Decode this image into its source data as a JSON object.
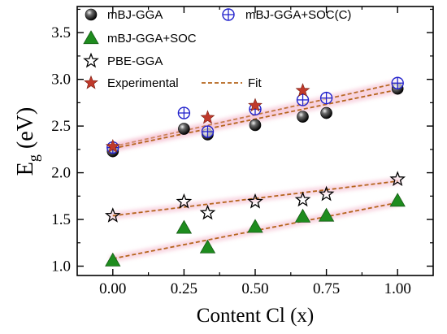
{
  "chart_data": {
    "type": "scatter",
    "xlabel": "Content Cl (x)",
    "ylabel_main": "E",
    "ylabel_sub": "g",
    "ylabel_unit": " (eV)",
    "xlim": [
      -0.125,
      1.125
    ],
    "ylim": [
      0.9,
      3.78
    ],
    "x_ticks": [
      "0.00",
      "0.25",
      "0.50",
      "0.75",
      "1.00"
    ],
    "x_tick_values": [
      0,
      0.25,
      0.5,
      0.75,
      1.0
    ],
    "y_ticks": [
      "1.0",
      "1.5",
      "2.0",
      "2.5",
      "3.0",
      "3.5"
    ],
    "y_tick_values": [
      1.0,
      1.5,
      2.0,
      2.5,
      3.0,
      3.5
    ],
    "grid": false,
    "legend_position": "top-left",
    "series": [
      {
        "name": "mBJ-GGA",
        "marker": "sphere",
        "color": "#222222",
        "x": [
          0,
          0.25,
          0.333,
          0.5,
          0.667,
          0.75,
          1.0
        ],
        "y": [
          2.23,
          2.47,
          2.41,
          2.51,
          2.6,
          2.64,
          2.9
        ]
      },
      {
        "name": "mBJ-GGA+SOC(C)",
        "marker": "circle-cross",
        "color": "#2222cc",
        "x": [
          0,
          0.25,
          0.333,
          0.5,
          0.667,
          0.75,
          1.0
        ],
        "y": [
          2.27,
          2.64,
          2.44,
          2.68,
          2.78,
          2.8,
          2.96
        ]
      },
      {
        "name": "mBJ-GGA+SOC",
        "marker": "triangle",
        "color": "#1e8c1e",
        "x": [
          0,
          0.25,
          0.333,
          0.5,
          0.667,
          0.75,
          1.0
        ],
        "y": [
          1.06,
          1.41,
          1.2,
          1.42,
          1.53,
          1.54,
          1.7
        ]
      },
      {
        "name": "PBE-GGA",
        "marker": "star-open",
        "color": "#000000",
        "x": [
          0,
          0.25,
          0.333,
          0.5,
          0.667,
          0.75,
          1.0
        ],
        "y": [
          1.54,
          1.69,
          1.57,
          1.69,
          1.71,
          1.77,
          1.93
        ]
      },
      {
        "name": "Experimental",
        "marker": "star-filled",
        "color": "#c0392b",
        "x": [
          0,
          0.333,
          0.5,
          0.667
        ],
        "y": [
          2.28,
          2.59,
          2.72,
          2.88
        ]
      },
      {
        "name": "Fit",
        "marker": "dashed-line",
        "color": "#b5651d",
        "lines": [
          {
            "x": [
              0,
              1.0
            ],
            "y": [
              2.28,
              2.96
            ]
          },
          {
            "x": [
              0,
              1.0
            ],
            "y": [
              2.26,
              2.89
            ]
          },
          {
            "x": [
              0,
              1.0
            ],
            "y": [
              1.54,
              1.91
            ]
          },
          {
            "x": [
              0,
              1.0
            ],
            "y": [
              1.08,
              1.68
            ]
          }
        ]
      }
    ]
  }
}
